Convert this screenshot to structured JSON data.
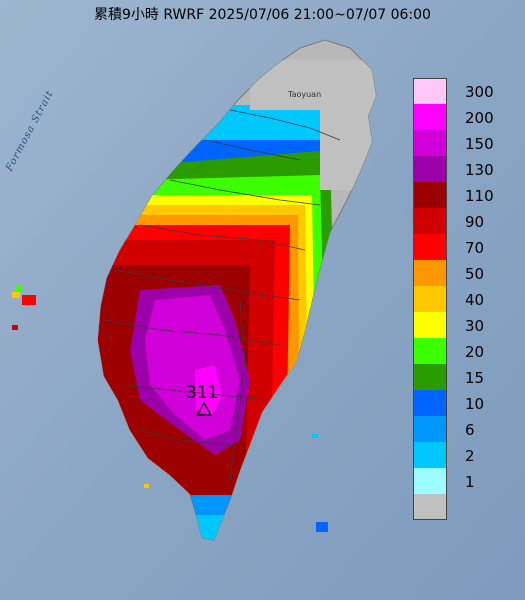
{
  "title": "累積9小時 RWRF 2025/07/06 21:00~07/07 06:00",
  "map_labels": {
    "strait": "Formosa Strait",
    "city": "Taoyuan",
    "peak_value": "311"
  },
  "legend": [
    {
      "label": "300",
      "color": "#ffc8f8"
    },
    {
      "label": "200",
      "color": "#ff00ff"
    },
    {
      "label": "150",
      "color": "#d000d8"
    },
    {
      "label": "130",
      "color": "#9c00a8"
    },
    {
      "label": "110",
      "color": "#9c0000"
    },
    {
      "label": "90",
      "color": "#d00000"
    },
    {
      "label": "70",
      "color": "#ff0000"
    },
    {
      "label": "50",
      "color": "#ff9800"
    },
    {
      "label": "40",
      "color": "#ffc800"
    },
    {
      "label": "30",
      "color": "#ffff00"
    },
    {
      "label": "20",
      "color": "#3cff00"
    },
    {
      "label": "15",
      "color": "#2a9c00"
    },
    {
      "label": "10",
      "color": "#0064ff"
    },
    {
      "label": "6",
      "color": "#0096ff"
    },
    {
      "label": "2",
      "color": "#00c8ff"
    },
    {
      "label": "1",
      "color": "#9cfcff"
    },
    {
      "label": "",
      "color": "#c0c0c0"
    }
  ]
}
